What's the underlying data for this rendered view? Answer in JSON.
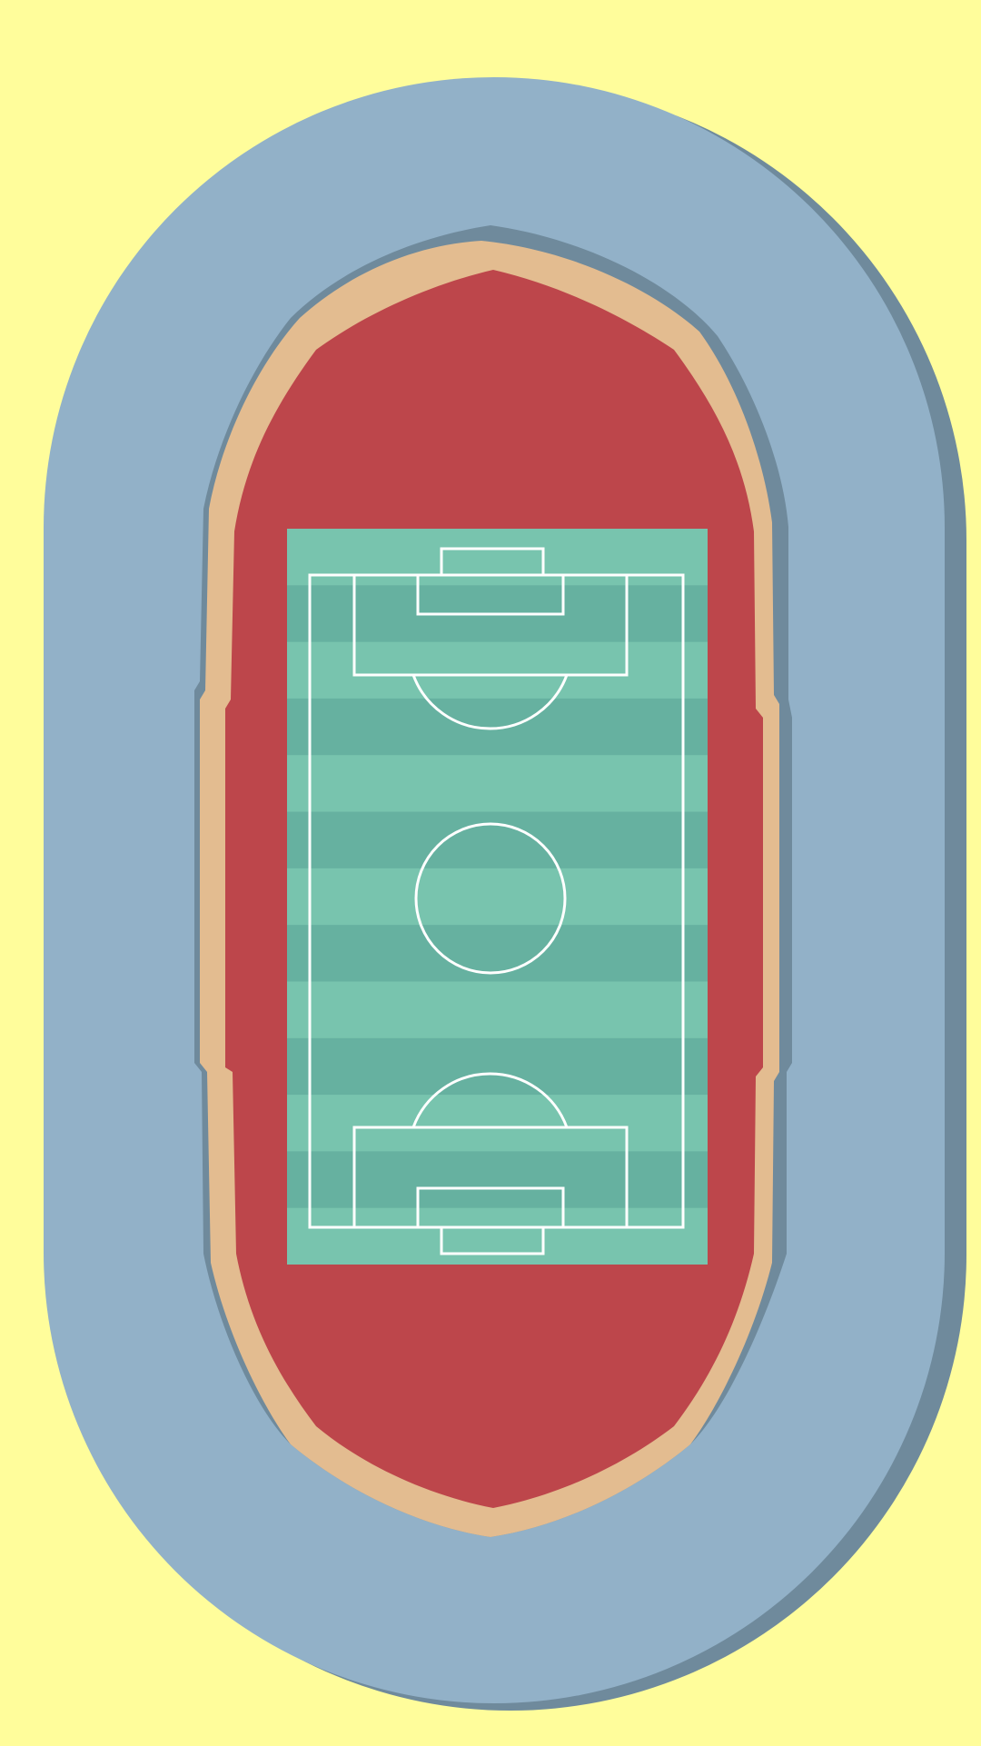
{
  "scene": {
    "description_label": "",
    "colors": {
      "background": "#FFFD9B",
      "stands": "#92B1C8",
      "stands_shadow": "#6F8A9C",
      "track_border_shadow": "#6F8A9C",
      "track_border": "#E3BC90",
      "track": "#BD464B",
      "pitch_light": "#78C4AE",
      "pitch_dark": "#66B1A0",
      "pitch_lines": "#FFFFFF"
    },
    "icons": {
      "stadium": "stadium-icon",
      "pitch": "football-pitch-icon"
    },
    "pitch": {
      "stripe_count": 13
    }
  }
}
